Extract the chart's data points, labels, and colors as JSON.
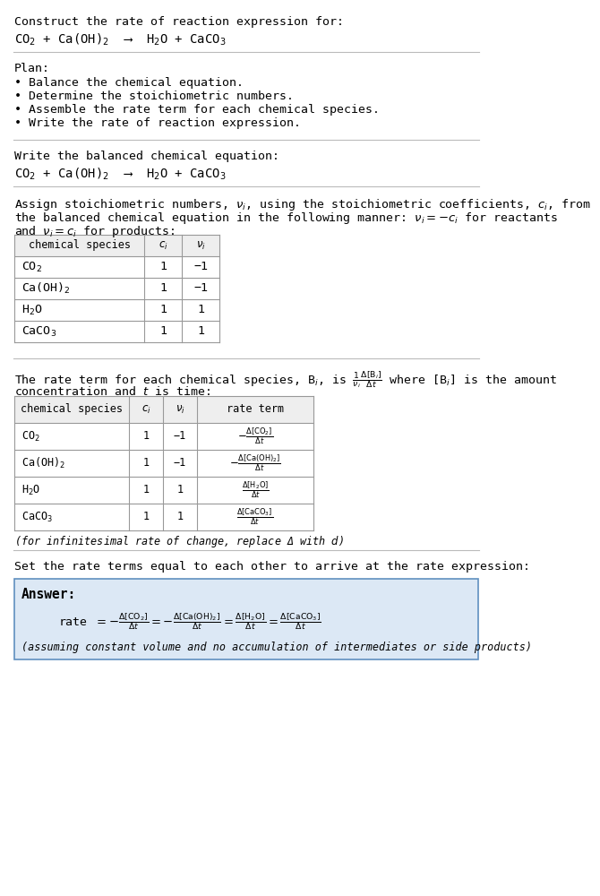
{
  "title_line1": "Construct the rate of reaction expression for:",
  "reaction_equation": "CO$_2$ + Ca(OH)$_2$  ⟶  H$_2$O + CaCO$_3$",
  "plan_header": "Plan:",
  "plan_items": [
    "• Balance the chemical equation.",
    "• Determine the stoichiometric numbers.",
    "• Assemble the rate term for each chemical species.",
    "• Write the rate of reaction expression."
  ],
  "balanced_header": "Write the balanced chemical equation:",
  "balanced_eq": "CO$_2$ + Ca(OH)$_2$  ⟶  H$_2$O + CaCO$_3$",
  "stoich_intro1": "Assign stoichiometric numbers, $\\nu_i$, using the stoichiometric coefficients, $c_i$, from",
  "stoich_intro2": "the balanced chemical equation in the following manner: $\\nu_i = -c_i$ for reactants",
  "stoich_intro3": "and $\\nu_i = c_i$ for products:",
  "table1_headers": [
    "chemical species",
    "$c_i$",
    "$\\nu_i$"
  ],
  "table1_rows": [
    [
      "CO$_2$",
      "1",
      "−1"
    ],
    [
      "Ca(OH)$_2$",
      "1",
      "−1"
    ],
    [
      "H$_2$O",
      "1",
      "1"
    ],
    [
      "CaCO$_3$",
      "1",
      "1"
    ]
  ],
  "rate_intro1": "The rate term for each chemical species, B$_i$, is $\\frac{1}{\\nu_i}\\frac{\\Delta[\\mathrm{B}_i]}{\\Delta t}$ where [B$_i$] is the amount",
  "rate_intro2": "concentration and $t$ is time:",
  "table2_headers": [
    "chemical species",
    "$c_i$",
    "$\\nu_i$",
    "rate term"
  ],
  "table2_rows": [
    [
      "CO$_2$",
      "1",
      "−1",
      "$-\\frac{\\Delta[\\mathrm{CO_2}]}{\\Delta t}$"
    ],
    [
      "Ca(OH)$_2$",
      "1",
      "−1",
      "$-\\frac{\\Delta[\\mathrm{Ca(OH)_2}]}{\\Delta t}$"
    ],
    [
      "H$_2$O",
      "1",
      "1",
      "$\\frac{\\Delta[\\mathrm{H_2O}]}{\\Delta t}$"
    ],
    [
      "CaCO$_3$",
      "1",
      "1",
      "$\\frac{\\Delta[\\mathrm{CaCO_3}]}{\\Delta t}$"
    ]
  ],
  "infinitesimal_note": "(for infinitesimal rate of change, replace Δ with $d$)",
  "rate_expr_intro": "Set the rate terms equal to each other to arrive at the rate expression:",
  "answer_box_color": "#dce8f5",
  "answer_box_border": "#6090c0",
  "answer_label": "Answer:",
  "rate_expression": "rate $= -\\frac{\\Delta[\\mathrm{CO_2}]}{\\Delta t} = -\\frac{\\Delta[\\mathrm{Ca(OH)_2}]}{\\Delta t} = \\frac{\\Delta[\\mathrm{H_2O}]}{\\Delta t} = \\frac{\\Delta[\\mathrm{CaCO_3}]}{\\Delta t}$",
  "assumption_note": "(assuming constant volume and no accumulation of intermediates or side products)",
  "bg_color": "#ffffff",
  "text_color": "#000000",
  "table_header_bg": "#eeeeee",
  "table_border_color": "#999999",
  "separator_color": "#bbbbbb"
}
